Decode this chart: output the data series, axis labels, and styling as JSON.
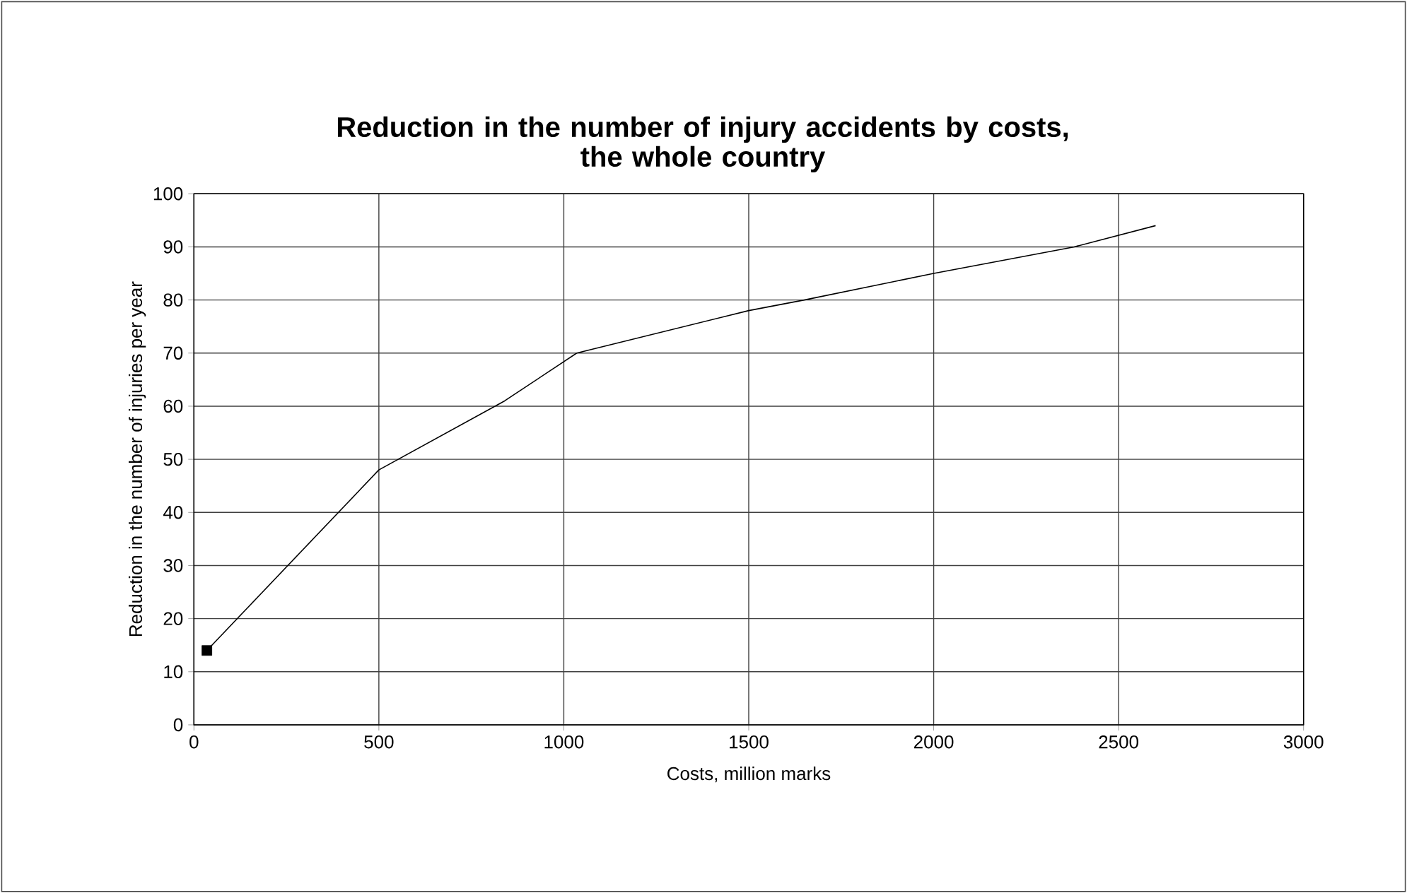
{
  "chart_data": {
    "type": "line",
    "title": "Reduction in the number of injury accidents by costs,\nthe whole country",
    "xlabel": "Costs, million marks",
    "ylabel": "Reduction in the number of injuries per year",
    "series": [
      {
        "type": "scatter",
        "color": "#000000",
        "marker": "square",
        "x": [
          35
        ],
        "values": [
          14
        ]
      },
      {
        "color": "#000000",
        "marker": "none",
        "line_style": "solid",
        "x": [
          35,
          500,
          840,
          1035,
          1500,
          1650,
          2000,
          2380,
          2600
        ],
        "values": [
          14,
          48,
          61,
          70,
          78,
          80,
          85,
          90,
          94
        ]
      }
    ],
    "xlim": [
      0,
      3000
    ],
    "xticks": [
      0,
      500,
      1000,
      1500,
      2000,
      2500,
      3000
    ],
    "ylim": [
      0,
      100
    ],
    "yticks": [
      0,
      10,
      20,
      30,
      40,
      50,
      60,
      70,
      80,
      90,
      100
    ],
    "grid": true
  }
}
